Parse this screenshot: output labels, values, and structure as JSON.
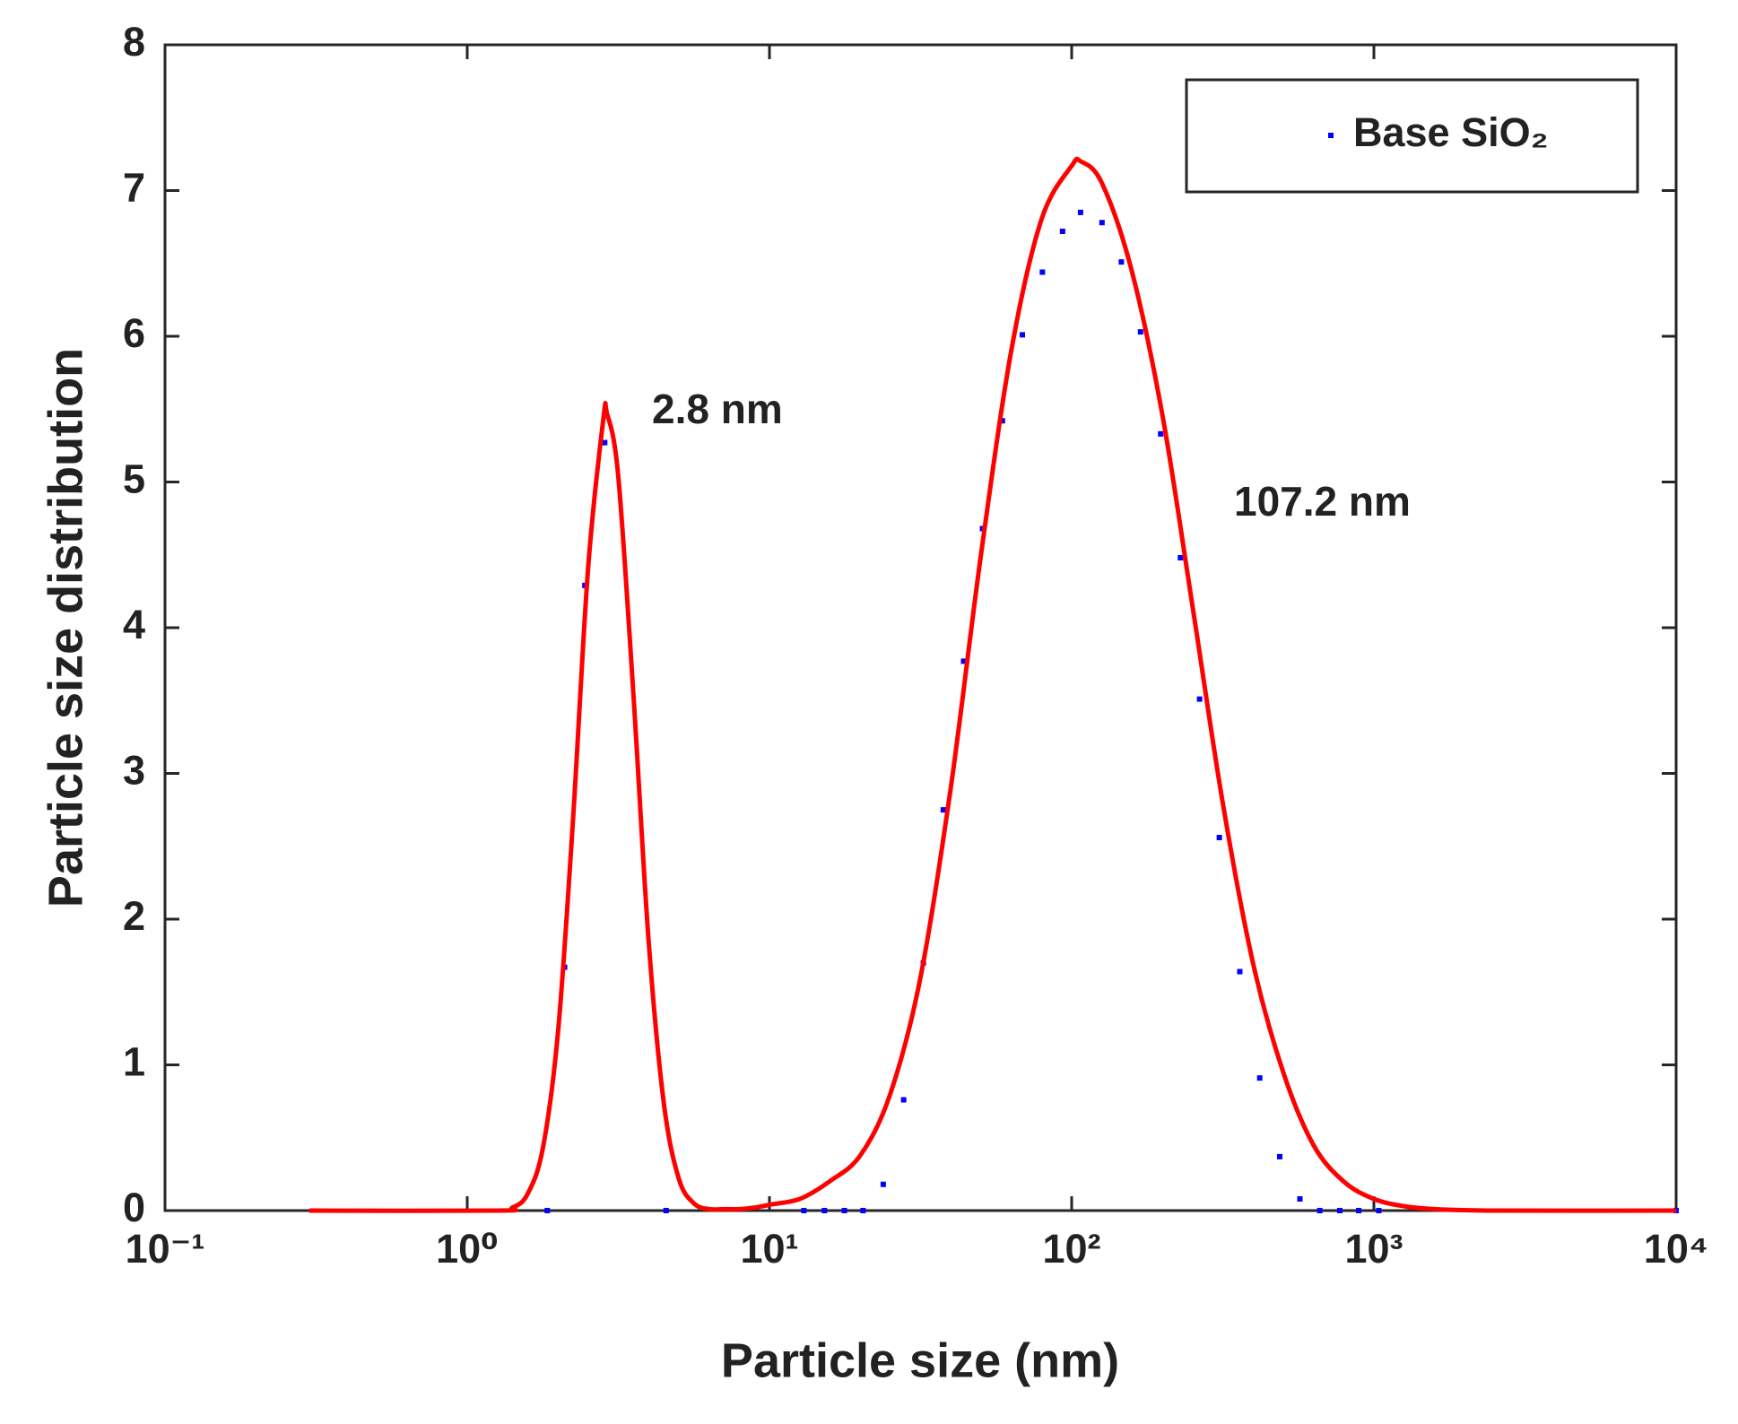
{
  "chart_data": {
    "type": "scatter",
    "xlabel": "Particle size (nm)",
    "ylabel": "Particle size distribution",
    "xscale": "log",
    "xlim": [
      0.1,
      10000
    ],
    "ylim": [
      0,
      8
    ],
    "xticks": [
      {
        "value": 0.1,
        "label": "10⁻¹"
      },
      {
        "value": 1,
        "label": "10⁰"
      },
      {
        "value": 10,
        "label": "10¹"
      },
      {
        "value": 100,
        "label": "10²"
      },
      {
        "value": 1000,
        "label": "10³"
      },
      {
        "value": 10000,
        "label": "10⁴"
      }
    ],
    "yticks": [
      0,
      1,
      2,
      3,
      4,
      5,
      6,
      7,
      8
    ],
    "legend": "upper right",
    "annotations": [
      "2.8 nm",
      "107.2 nm"
    ],
    "series": [
      {
        "name": "Base SiO₂",
        "type": "scatter",
        "color": "#0000ff",
        "x": [
          1.84,
          2.1,
          2.45,
          2.85,
          4.55,
          13,
          15.2,
          17.7,
          20.4,
          23.8,
          27.8,
          32.3,
          37.6,
          43.9,
          50.7,
          59,
          68.7,
          80,
          93.3,
          107,
          126,
          146,
          169,
          197,
          229,
          265,
          308,
          360,
          419,
          488,
          569,
          662,
          771,
          891,
          1038,
          10000
        ],
        "values": [
          0,
          1.67,
          4.29,
          5.27,
          0,
          0,
          0,
          0,
          0,
          0.18,
          0.76,
          1.7,
          2.75,
          3.77,
          4.68,
          5.42,
          6.01,
          6.44,
          6.72,
          6.85,
          6.78,
          6.51,
          6.03,
          5.33,
          4.48,
          3.51,
          2.56,
          1.64,
          0.91,
          0.37,
          0.08,
          0,
          0,
          0,
          0,
          0
        ]
      },
      {
        "type": "line",
        "color": "#ff0000",
        "x": [
          0.3,
          1.26,
          1.41,
          1.58,
          1.78,
          2.0,
          2.24,
          2.51,
          2.82,
          2.9,
          3.16,
          3.55,
          3.98,
          4.47,
          5.01,
          5.62,
          6.31,
          7.08,
          7.94,
          8.91,
          10,
          12.6,
          15.8,
          20,
          25.1,
          31.6,
          39.8,
          50.1,
          63.1,
          79.4,
          100,
          107.2,
          126,
          158,
          200,
          251,
          316,
          398,
          501,
          631,
          794,
          1000,
          1259,
          1585,
          2512,
          10000
        ],
        "values": [
          0,
          0,
          0.02,
          0.11,
          0.43,
          1.24,
          2.69,
          4.4,
          5.43,
          5.47,
          5.04,
          3.53,
          1.86,
          0.74,
          0.22,
          0.05,
          0.01,
          0.01,
          0.01,
          0.02,
          0.04,
          0.08,
          0.2,
          0.38,
          0.8,
          1.6,
          2.9,
          4.5,
          5.9,
          6.8,
          7.17,
          7.2,
          7.05,
          6.45,
          5.45,
          4.15,
          2.8,
          1.7,
          0.95,
          0.45,
          0.2,
          0.08,
          0.03,
          0.01,
          0,
          0
        ]
      }
    ]
  }
}
